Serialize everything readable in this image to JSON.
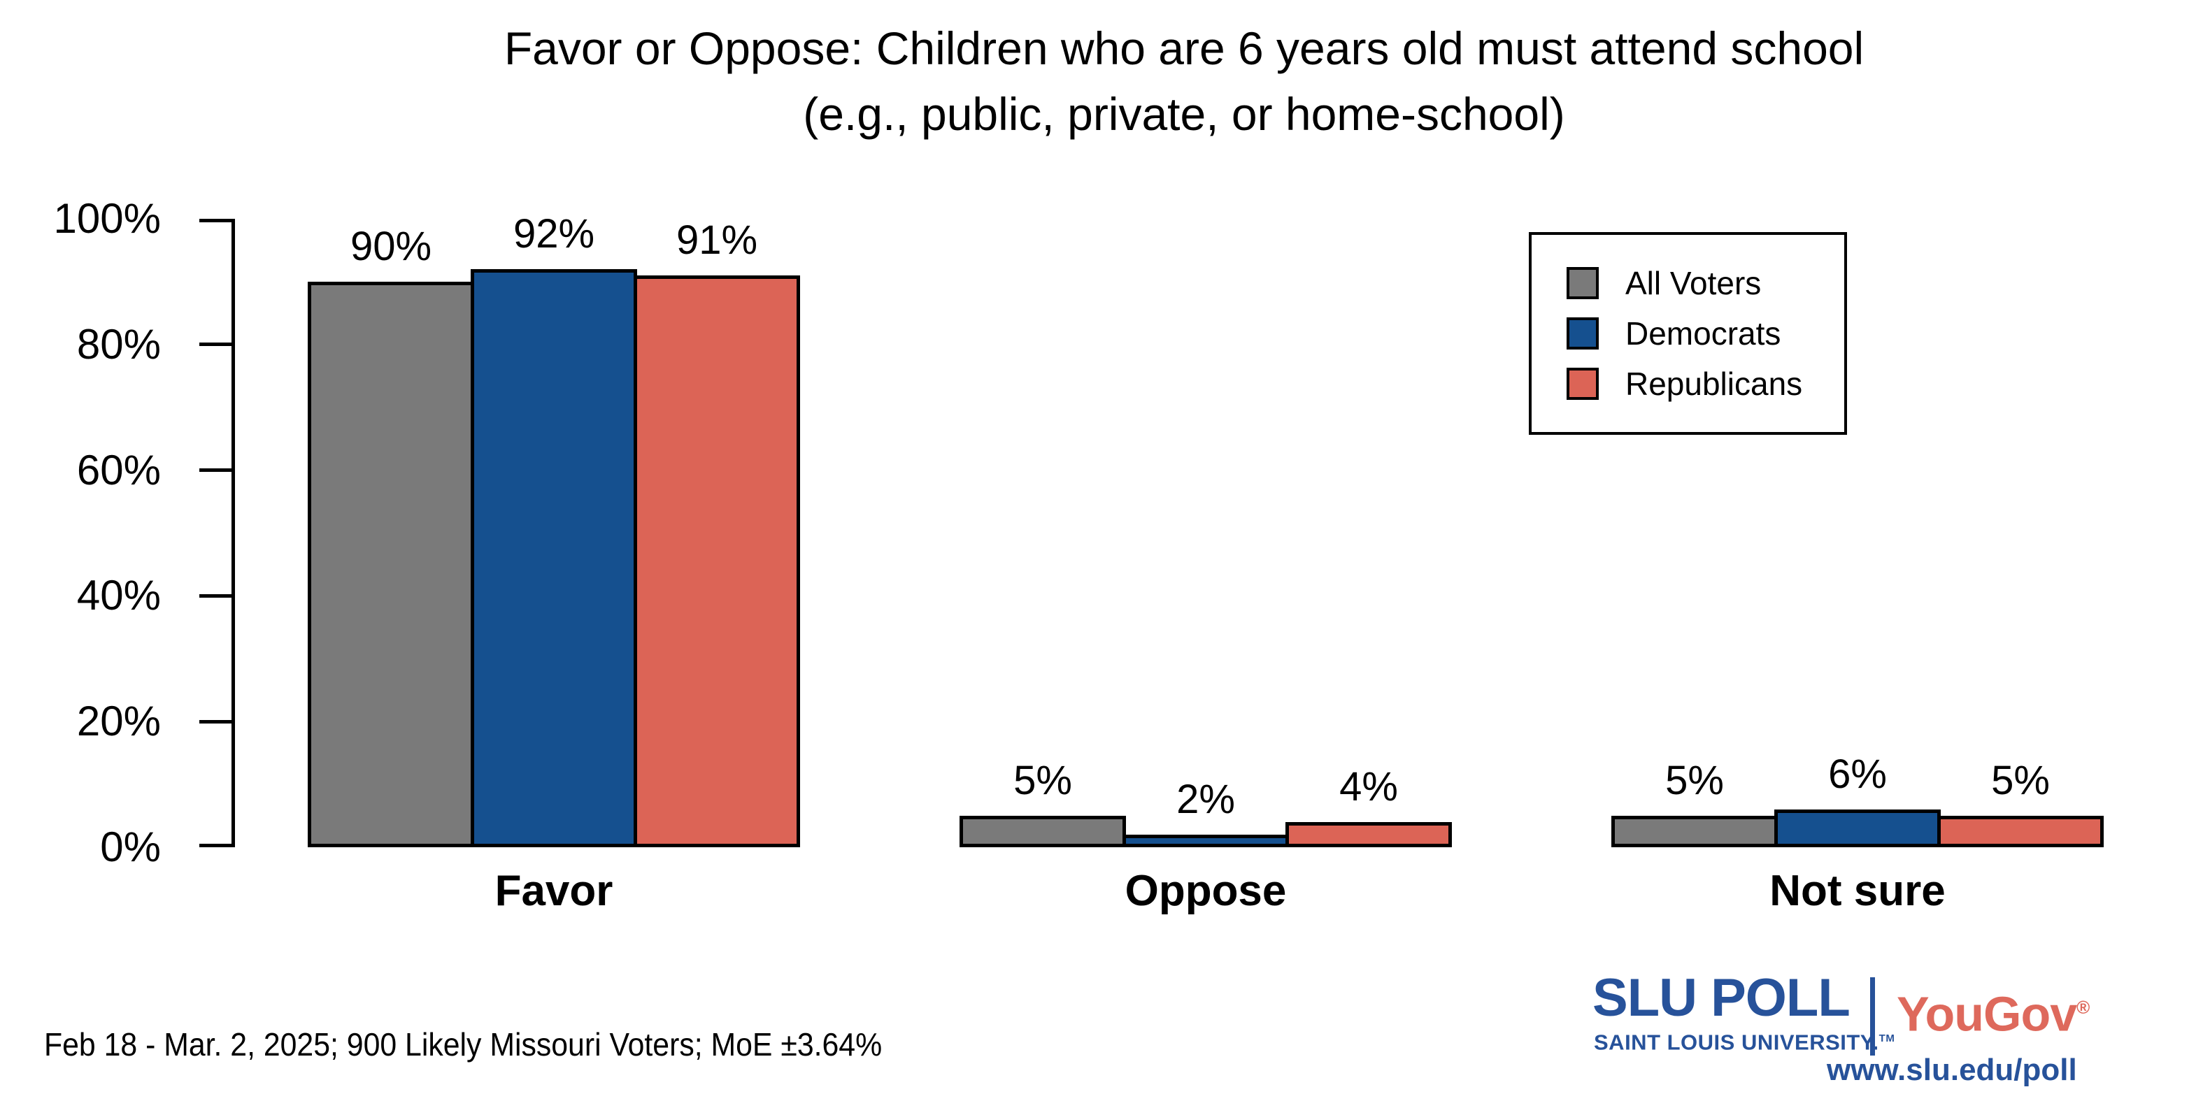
{
  "title": {
    "line1": "Favor or Oppose: Children who are 6 years old must attend school",
    "line2": "(e.g., public, private, or home-school)"
  },
  "chart_data": {
    "type": "bar",
    "title": "Favor or Oppose: Children who are 6 years old must attend school (e.g., public, private, or home-school)",
    "categories": [
      "Favor",
      "Oppose",
      "Not sure"
    ],
    "series": [
      {
        "name": "All Voters",
        "color": "#7a7a7a",
        "values": [
          90,
          5,
          5
        ]
      },
      {
        "name": "Democrats",
        "color": "#15508f",
        "values": [
          92,
          2,
          6
        ]
      },
      {
        "name": "Republicans",
        "color": "#dc6456",
        "values": [
          91,
          4,
          5
        ]
      }
    ],
    "value_suffix": "%",
    "xlabel": "",
    "ylabel": "",
    "ylim": [
      0,
      100
    ],
    "yticks": [
      0,
      20,
      40,
      60,
      80,
      100
    ],
    "ytick_labels": [
      "0%",
      "20%",
      "40%",
      "60%",
      "80%",
      "100%"
    ],
    "grid": false,
    "bar_outline_color": "#000000",
    "bar_labels": true,
    "legend_position": "top-right"
  },
  "footer": {
    "note": "Feb 18 - Mar. 2, 2025; 900 Likely Missouri Voters; MoE ±3.64%"
  },
  "branding": {
    "slu_poll": "SLU POLL",
    "slu_subtitle": "SAINT LOUIS UNIVERSITY.",
    "slu_tm": "TM",
    "yougov": "YouGov",
    "yougov_reg": "®",
    "website": "www.slu.edu/poll",
    "slu_blue": "#27529a",
    "yougov_red": "#de695c"
  }
}
